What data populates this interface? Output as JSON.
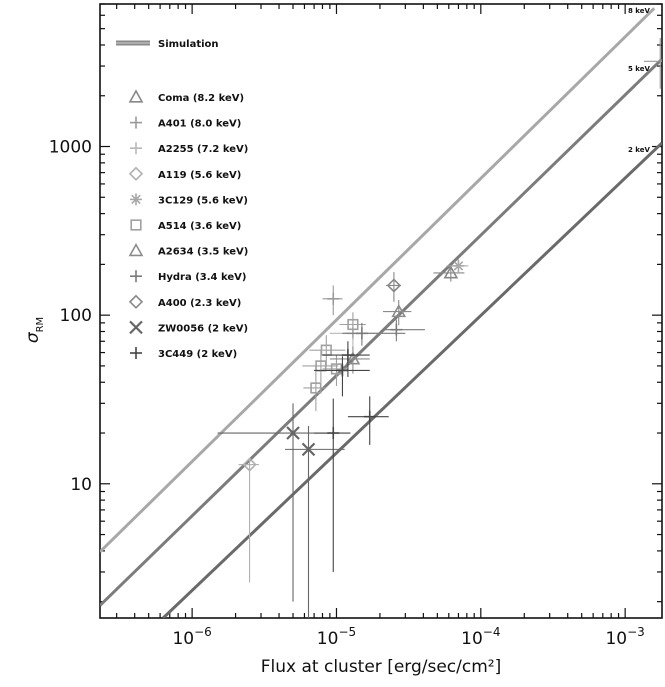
{
  "chart_data": {
    "type": "scatter",
    "title": "",
    "xlabel": "Flux at cluster [erg/sec/cm²]",
    "ylabel": "σ_RM",
    "xscale": "log",
    "yscale": "log",
    "xlim": [
      2.3e-07,
      0.0018
    ],
    "ylim": [
      1.6,
      7000
    ],
    "x_ticks": [
      {
        "value": 1e-06,
        "base": "10",
        "exp": "−6"
      },
      {
        "value": 1e-05,
        "base": "10",
        "exp": "−5"
      },
      {
        "value": 0.0001,
        "base": "10",
        "exp": "−4"
      },
      {
        "value": 0.001,
        "base": "10",
        "exp": "−3"
      }
    ],
    "y_ticks": [
      {
        "value": 10,
        "label": "10"
      },
      {
        "value": 100,
        "label": "100"
      },
      {
        "value": 1000,
        "label": "1000"
      }
    ],
    "legend_position": "top-left",
    "lines": [
      {
        "name": "8 keV",
        "color": "#a8a8a8",
        "points": [
          [
            2.3e-07,
            3.95
          ],
          [
            0.00159,
            6600
          ]
        ]
      },
      {
        "name": "5 keV",
        "color": "#7c7c7c",
        "points": [
          [
            2.3e-07,
            1.9
          ],
          [
            0.0018,
            3300
          ]
        ]
      },
      {
        "name": "2 keV",
        "color": "#6a6a6a",
        "points": [
          [
            6.3e-07,
            1.6
          ],
          [
            0.0018,
            1050
          ]
        ]
      }
    ],
    "simulation_points": [
      {
        "x": 0.00175,
        "y": 3200,
        "xerr": [
          0.0004,
          0.0001
        ],
        "yerr": [
          1000,
          1200
        ]
      }
    ],
    "series": [
      {
        "name": "Coma (8.2 keV)",
        "marker": "triangle",
        "color": "#888888",
        "points": [
          {
            "x": 6.2e-05,
            "y": 178,
            "xerr": [
              1.5e-05,
              1.5e-05
            ],
            "yerr": [
              20,
              20
            ]
          }
        ]
      },
      {
        "name": "A401 (8.0 keV)",
        "marker": "plus",
        "color": "#9a9a9a",
        "points": [
          {
            "x": 9.5e-06,
            "y": 125,
            "xerr": [
              1.5e-06,
              1.5e-06
            ],
            "yerr": [
              25,
              25
            ]
          }
        ]
      },
      {
        "name": "A2255 (7.2 keV)",
        "marker": "plus",
        "color": "#b8b8b8",
        "points": [
          {
            "x": 1.3e-05,
            "y": 78,
            "xerr": [
              4e-06,
              8e-06
            ],
            "yerr": [
              15,
              15
            ]
          }
        ]
      },
      {
        "name": "A119 (5.6 keV)",
        "marker": "diamond",
        "color": "#b0b0b0",
        "points": [
          {
            "x": 2.5e-06,
            "y": 13,
            "xerr": [
              4e-07,
              4e-07
            ],
            "yerr": [
              10.4,
              1
            ]
          }
        ]
      },
      {
        "name": "3C129 (5.6 keV)",
        "marker": "star",
        "color": "#a8a8a8",
        "points": [
          {
            "x": 7e-05,
            "y": 196,
            "xerr": [
              1.2e-05,
              1.2e-05
            ],
            "yerr": [
              18,
              18
            ]
          }
        ]
      },
      {
        "name": "A514 (3.6 keV)",
        "marker": "square",
        "color": "#a0a0a0",
        "points": [
          {
            "x": 7.2e-06,
            "y": 37,
            "xerr": [
              1.3e-06,
              1.3e-06
            ],
            "yerr": [
              10,
              14
            ]
          },
          {
            "x": 8.5e-06,
            "y": 62,
            "xerr": [
              2e-06,
              3e-06
            ],
            "yerr": [
              12,
              14
            ]
          },
          {
            "x": 7.8e-06,
            "y": 50,
            "xerr": [
              2e-06,
              2.5e-06
            ],
            "yerr": [
              10,
              12
            ]
          },
          {
            "x": 1.3e-05,
            "y": 88,
            "xerr": [
              2.5e-06,
              3e-06
            ],
            "yerr": [
              14,
              16
            ]
          },
          {
            "x": 1e-05,
            "y": 48,
            "xerr": [
              2e-06,
              2e-06
            ],
            "yerr": [
              10,
              10
            ]
          }
        ]
      },
      {
        "name": "A2634 (3.5 keV)",
        "marker": "triangle",
        "color": "#8c8c8c",
        "points": [
          {
            "x": 2.7e-05,
            "y": 105,
            "xerr": [
              6e-06,
              6e-06
            ],
            "yerr": [
              18,
              18
            ]
          },
          {
            "x": 1.3e-05,
            "y": 55,
            "xerr": [
              4e-06,
              4e-06
            ],
            "yerr": [
              10,
              10
            ]
          }
        ]
      },
      {
        "name": "Hydra (3.4 keV)",
        "marker": "plus",
        "color": "#7a7a7a",
        "points": [
          {
            "x": 1.5e-05,
            "y": 78,
            "xerr": [
              4e-06,
              1.5e-05
            ],
            "yerr": [
              12,
              12
            ]
          },
          {
            "x": 2.6e-05,
            "y": 82,
            "xerr": [
              5e-06,
              1.5e-05
            ],
            "yerr": [
              12,
              12
            ]
          }
        ]
      },
      {
        "name": "A400 (2.3 keV)",
        "marker": "diamond",
        "color": "#888888",
        "points": [
          {
            "x": 2.5e-05,
            "y": 150,
            "xerr": [
              3e-06,
              3e-06
            ],
            "yerr": [
              30,
              30
            ]
          }
        ]
      },
      {
        "name": "ZW0056 (2 keV)",
        "marker": "x",
        "color": "#666666",
        "points": [
          {
            "x": 5e-06,
            "y": 20,
            "xerr": [
              3.5e-06,
              4e-06
            ],
            "yerr": [
              18,
              10
            ]
          },
          {
            "x": 6.4e-06,
            "y": 16,
            "xerr": [
              2e-06,
              5e-06
            ],
            "yerr": [
              14.6,
              6
            ]
          }
        ]
      },
      {
        "name": "3C449 (2 keV)",
        "marker": "plus",
        "color": "#444444",
        "points": [
          {
            "x": 1.7e-05,
            "y": 25,
            "xerr": [
              5e-06,
              6e-06
            ],
            "yerr": [
              8,
              8
            ]
          },
          {
            "x": 9.5e-06,
            "y": 20,
            "xerr": [
              2.5e-06,
              3e-06
            ],
            "yerr": [
              17,
              12
            ]
          },
          {
            "x": 1.1e-05,
            "y": 47,
            "xerr": [
              4e-06,
              6e-06
            ],
            "yerr": [
              14,
              10
            ]
          },
          {
            "x": 1.2e-05,
            "y": 58,
            "xerr": [
              4e-06,
              5e-06
            ],
            "yerr": [
              15,
              12
            ]
          }
        ]
      }
    ],
    "legend": {
      "simulation_label": "Simulation",
      "simulation_color": "#8a8a8a"
    }
  }
}
